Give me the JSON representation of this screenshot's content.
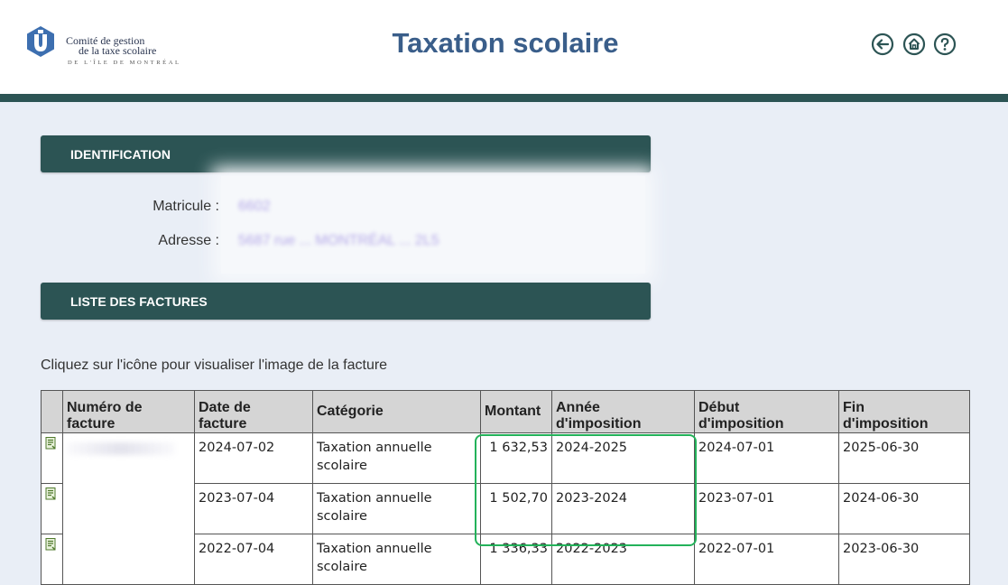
{
  "header": {
    "logo_line1": "Comité de gestion",
    "logo_line2": "de la taxe scolaire",
    "logo_line3": "DE L'ÎLE DE MONTRÉAL",
    "title": "Taxation scolaire",
    "icons": [
      "back-arrow-icon",
      "home-icon",
      "help-icon"
    ]
  },
  "identification": {
    "title": "IDENTIFICATION",
    "matricule_label": "Matricule :",
    "matricule_value": "6602",
    "adresse_label": "Adresse :",
    "adresse_value": "5687 rue ... MONTRÉAL ... 2L5"
  },
  "invoices": {
    "title": "LISTE DES FACTURES",
    "instructions": "Cliquez sur l'icône pour visualiser l'image de la facture",
    "headers": {
      "numero_line1": "Numéro de",
      "numero_line2": "facture",
      "date_line1": "Date de",
      "date_line2": "facture",
      "categorie": "Catégorie",
      "montant": "Montant",
      "annee_line1": "Année",
      "annee_line2": "d'imposition",
      "debut_line1": "Début",
      "debut_line2": "d'imposition",
      "fin_line1": "Fin",
      "fin_line2": "d'imposition"
    },
    "rows": [
      {
        "date": "2024-07-02",
        "categorie_l1": "Taxation annuelle",
        "categorie_l2": "scolaire",
        "montant": "1 632,53",
        "annee": "2024-2025",
        "debut": "2024-07-01",
        "fin": "2025-06-30"
      },
      {
        "date": "2023-07-04",
        "categorie_l1": "Taxation annuelle",
        "categorie_l2": "scolaire",
        "montant": "1 502,70",
        "annee": "2023-2024",
        "debut": "2023-07-01",
        "fin": "2024-06-30"
      },
      {
        "date": "2022-07-04",
        "categorie_l1": "Taxation annuelle",
        "categorie_l2": "scolaire",
        "montant": "1 336,33",
        "annee": "2022-2023",
        "debut": "2022-07-01",
        "fin": "2023-06-30"
      }
    ]
  },
  "colors": {
    "accent_dark": "#2c5454",
    "title_blue": "#3a5e8a",
    "highlight_green": "#23b25a",
    "background": "#e9eef6"
  }
}
